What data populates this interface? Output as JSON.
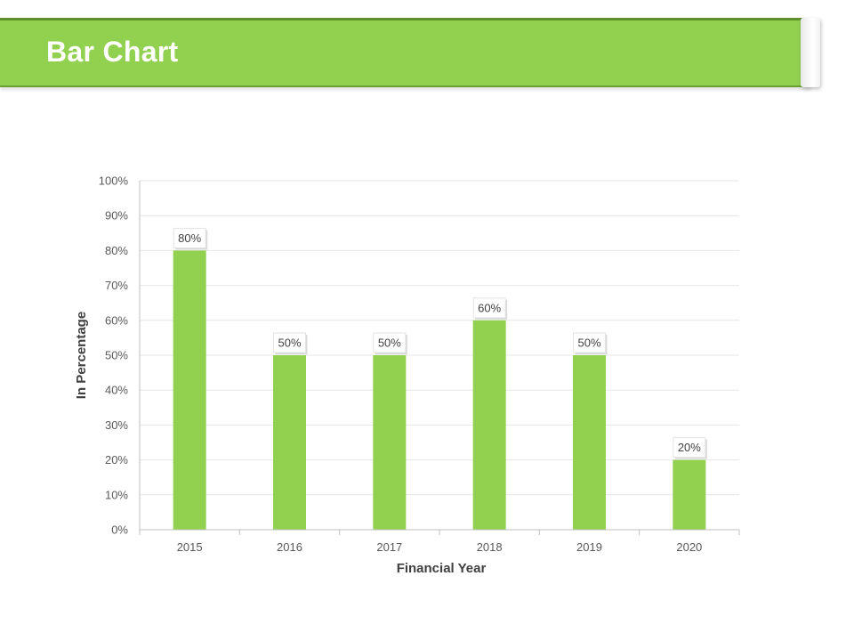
{
  "header": {
    "title": "Bar Chart"
  },
  "colors": {
    "accent": "#92d050",
    "bar": "#92d050",
    "grid": "#e6e6e6",
    "axis": "#bfbfbf"
  },
  "chart_data": {
    "type": "bar",
    "categories": [
      "2015",
      "2016",
      "2017",
      "2018",
      "2019",
      "2020"
    ],
    "values": [
      80,
      50,
      50,
      60,
      50,
      20
    ],
    "data_labels": [
      "80%",
      "50%",
      "50%",
      "60%",
      "50%",
      "20%"
    ],
    "xlabel": "Financial Year",
    "ylabel": "In Percentage",
    "ylim": [
      0,
      100
    ],
    "yticks": [
      "0%",
      "10%",
      "20%",
      "30%",
      "40%",
      "50%",
      "60%",
      "70%",
      "80%",
      "90%",
      "100%"
    ],
    "grid": true,
    "legend": "none"
  }
}
